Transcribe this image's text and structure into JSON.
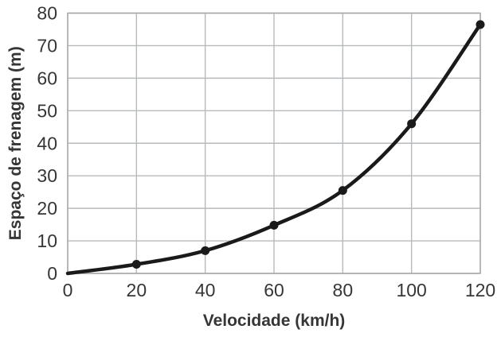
{
  "chart_data": {
    "type": "line",
    "title": "",
    "xlabel": "Velocidade (km/h)",
    "ylabel": "Espaço de frenagem (m)",
    "x": [
      0,
      20,
      40,
      60,
      80,
      100,
      120
    ],
    "values": [
      0,
      2.8,
      7,
      14.8,
      25.5,
      46,
      76.5
    ],
    "markers_at_x": [
      20,
      40,
      60,
      80,
      100,
      120
    ],
    "xlim": [
      0,
      120
    ],
    "ylim": [
      0,
      80
    ],
    "x_ticks": [
      0,
      20,
      40,
      60,
      80,
      100,
      120
    ],
    "y_ticks": [
      0,
      10,
      20,
      30,
      40,
      50,
      60,
      70,
      80
    ],
    "grid": true,
    "legend": false,
    "colors": {
      "line": "#1a1a1a",
      "marker": "#1a1a1a",
      "grid": "#b7babc",
      "axis": "#a6a6a6",
      "text": "#363636",
      "background": "#ffffff"
    }
  }
}
